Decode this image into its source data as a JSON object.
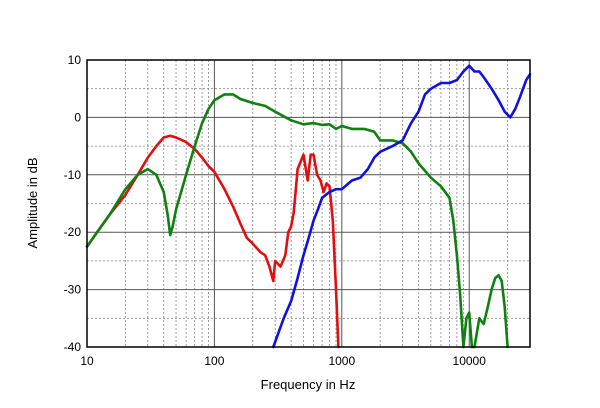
{
  "chart_data": {
    "type": "line",
    "title": "",
    "xlabel": "Frequency in Hz",
    "ylabel": "Amplitude in dB",
    "x_scale": "log",
    "xlim": [
      10,
      30000
    ],
    "ylim": [
      -40,
      10
    ],
    "x_ticks": [
      {
        "value": 10,
        "label": "10"
      },
      {
        "value": 100,
        "label": "100"
      },
      {
        "value": 1000,
        "label": "1000"
      },
      {
        "value": 10000,
        "label": "10000"
      }
    ],
    "y_ticks": [
      {
        "value": 10,
        "label": "10"
      },
      {
        "value": 0,
        "label": "0"
      },
      {
        "value": -10,
        "label": "-10"
      },
      {
        "value": -20,
        "label": "-20"
      },
      {
        "value": -30,
        "label": "-30"
      },
      {
        "value": -40,
        "label": "-40"
      }
    ],
    "grid": true,
    "legend": "none",
    "series": [
      {
        "color": "#e01010",
        "points": [
          [
            10,
            -22.5
          ],
          [
            12,
            -20
          ],
          [
            15,
            -17
          ],
          [
            20,
            -13.5
          ],
          [
            25,
            -10
          ],
          [
            30,
            -7
          ],
          [
            35,
            -5
          ],
          [
            40,
            -3.5
          ],
          [
            45,
            -3.2
          ],
          [
            50,
            -3.5
          ],
          [
            60,
            -4.3
          ],
          [
            70,
            -5.5
          ],
          [
            80,
            -7
          ],
          [
            90,
            -8.5
          ],
          [
            100,
            -9.5
          ],
          [
            120,
            -12.5
          ],
          [
            140,
            -15.5
          ],
          [
            160,
            -18.5
          ],
          [
            180,
            -21
          ],
          [
            200,
            -22
          ],
          [
            230,
            -23.5
          ],
          [
            250,
            -24
          ],
          [
            270,
            -26
          ],
          [
            290,
            -28.5
          ],
          [
            300,
            -25
          ],
          [
            330,
            -26
          ],
          [
            360,
            -24
          ],
          [
            380,
            -20
          ],
          [
            400,
            -19
          ],
          [
            420,
            -16.5
          ],
          [
            450,
            -9
          ],
          [
            500,
            -6.5
          ],
          [
            540,
            -11
          ],
          [
            570,
            -6.5
          ],
          [
            600,
            -6.5
          ],
          [
            640,
            -10
          ],
          [
            680,
            -11
          ],
          [
            720,
            -13
          ],
          [
            760,
            -11.5
          ],
          [
            800,
            -12
          ],
          [
            850,
            -18
          ],
          [
            900,
            -30
          ],
          [
            940,
            -40
          ]
        ]
      },
      {
        "color": "#108010",
        "points": [
          [
            10,
            -22.5
          ],
          [
            12,
            -20
          ],
          [
            15,
            -17
          ],
          [
            20,
            -12.5
          ],
          [
            25,
            -10
          ],
          [
            30,
            -9
          ],
          [
            35,
            -10
          ],
          [
            40,
            -13
          ],
          [
            43,
            -17
          ],
          [
            45,
            -20.5
          ],
          [
            47,
            -19
          ],
          [
            50,
            -16
          ],
          [
            60,
            -10
          ],
          [
            70,
            -5
          ],
          [
            80,
            -1
          ],
          [
            90,
            1.5
          ],
          [
            100,
            3
          ],
          [
            120,
            4
          ],
          [
            140,
            4
          ],
          [
            160,
            3.2
          ],
          [
            200,
            2.5
          ],
          [
            250,
            2
          ],
          [
            300,
            1
          ],
          [
            400,
            -0.5
          ],
          [
            500,
            -1.2
          ],
          [
            600,
            -1
          ],
          [
            700,
            -1.3
          ],
          [
            800,
            -1.2
          ],
          [
            900,
            -2
          ],
          [
            1000,
            -1.5
          ],
          [
            1200,
            -2
          ],
          [
            1500,
            -2
          ],
          [
            1800,
            -2.5
          ],
          [
            2000,
            -4
          ],
          [
            2500,
            -4
          ],
          [
            3000,
            -4.5
          ],
          [
            3500,
            -6
          ],
          [
            4000,
            -8
          ],
          [
            5000,
            -10.5
          ],
          [
            6000,
            -12
          ],
          [
            7000,
            -14
          ],
          [
            7500,
            -18
          ],
          [
            8000,
            -24
          ],
          [
            8500,
            -31
          ],
          [
            9000,
            -40
          ],
          [
            9500,
            -35
          ],
          [
            10000,
            -34
          ],
          [
            10500,
            -40
          ],
          [
            11000,
            -40
          ],
          [
            12000,
            -35
          ],
          [
            13000,
            -36
          ],
          [
            14000,
            -33
          ],
          [
            15000,
            -30
          ],
          [
            16000,
            -28
          ],
          [
            17000,
            -27.5
          ],
          [
            18000,
            -28.5
          ],
          [
            19000,
            -33
          ],
          [
            20000,
            -40
          ]
        ]
      },
      {
        "color": "#1010e0",
        "points": [
          [
            290,
            -40
          ],
          [
            350,
            -35
          ],
          [
            400,
            -32
          ],
          [
            450,
            -28
          ],
          [
            500,
            -24
          ],
          [
            550,
            -21
          ],
          [
            600,
            -18
          ],
          [
            650,
            -16
          ],
          [
            700,
            -14
          ],
          [
            800,
            -13
          ],
          [
            900,
            -12.5
          ],
          [
            1000,
            -12.5
          ],
          [
            1200,
            -11
          ],
          [
            1400,
            -10.5
          ],
          [
            1600,
            -9
          ],
          [
            1800,
            -7
          ],
          [
            2000,
            -6
          ],
          [
            2500,
            -5
          ],
          [
            3000,
            -4
          ],
          [
            3500,
            -1
          ],
          [
            4000,
            1
          ],
          [
            4500,
            4
          ],
          [
            5000,
            5
          ],
          [
            6000,
            6
          ],
          [
            7000,
            6
          ],
          [
            8000,
            6.5
          ],
          [
            9000,
            8
          ],
          [
            10000,
            9
          ],
          [
            11000,
            8
          ],
          [
            12000,
            8
          ],
          [
            13000,
            7
          ],
          [
            15000,
            5
          ],
          [
            17000,
            3
          ],
          [
            19000,
            1
          ],
          [
            21000,
            0
          ],
          [
            23000,
            1.5
          ],
          [
            25000,
            3.5
          ],
          [
            28000,
            6.5
          ],
          [
            30000,
            7.5
          ]
        ]
      }
    ]
  }
}
